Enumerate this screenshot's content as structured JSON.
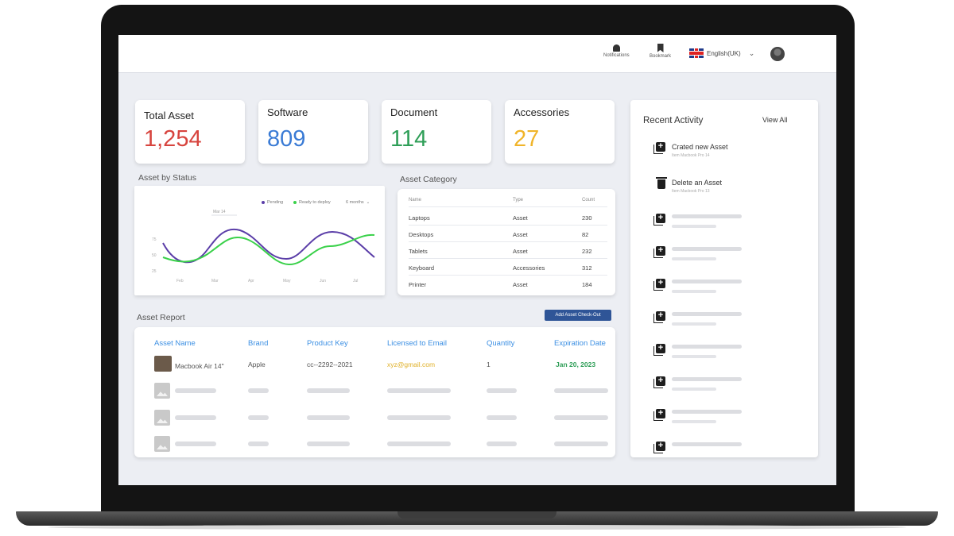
{
  "topbar": {
    "notifications_label": "Notifications",
    "bookmark_label": "Bookmark",
    "language": "English(UK)"
  },
  "stats": [
    {
      "title": "Total Asset",
      "value": "1,254",
      "color": "#d7443e"
    },
    {
      "title": "Software",
      "value": "809",
      "color": "#3a7bd5"
    },
    {
      "title": "Document",
      "value": "114",
      "color": "#2e9e57"
    },
    {
      "title": "Accessories",
      "value": "27",
      "color": "#f0b429"
    }
  ],
  "status_chart": {
    "title": "Asset  by Status",
    "legend": [
      "Pending",
      "Ready to deploy"
    ],
    "legend_colors": [
      "#5b3ea8",
      "#3ad14a"
    ],
    "dropdown": "6 months",
    "tooltip": "Mar 14",
    "y_ticks": [
      "75",
      "50",
      "25"
    ],
    "x_ticks": [
      "Feb",
      "Mar",
      "Apr",
      "May",
      "Jun",
      "Jul"
    ]
  },
  "category": {
    "title": "Asset Category",
    "headers": [
      "Name",
      "Type",
      "Count"
    ],
    "rows": [
      {
        "name": "Laptops",
        "type": "Asset",
        "count": "230"
      },
      {
        "name": "Desktops",
        "type": "Asset",
        "count": "82"
      },
      {
        "name": "Tablets",
        "type": "Asset",
        "count": "232"
      },
      {
        "name": "Keyboard",
        "type": "Accessories",
        "count": "312"
      },
      {
        "name": "Printer",
        "type": "Asset",
        "count": "184"
      }
    ]
  },
  "report": {
    "title": "Asset Report",
    "add_button": "Add Asset Check-Out",
    "headers": [
      "Asset Name",
      "Brand",
      "Product Key",
      "Licensed to Email",
      "Quantity",
      "Expiration Date"
    ],
    "row": {
      "name": "Macbook Air 14\"",
      "brand": "Apple",
      "key": "cc--2292--2021",
      "email": "xyz@gmail.com",
      "quantity": "1",
      "expiration": "Jan 20, 2023"
    },
    "email_color": "#e0b12a",
    "expiration_color": "#2e9e57"
  },
  "activity": {
    "title": "Recent Activity",
    "view_all": "View All",
    "items": [
      {
        "label": "Crated new Asset",
        "sub": "Item Macbook Pro 14",
        "icon": "add-box-icon"
      },
      {
        "label": "Delete an Asset",
        "sub": "Item Macbook Pro 13",
        "icon": "trash-icon"
      }
    ]
  }
}
